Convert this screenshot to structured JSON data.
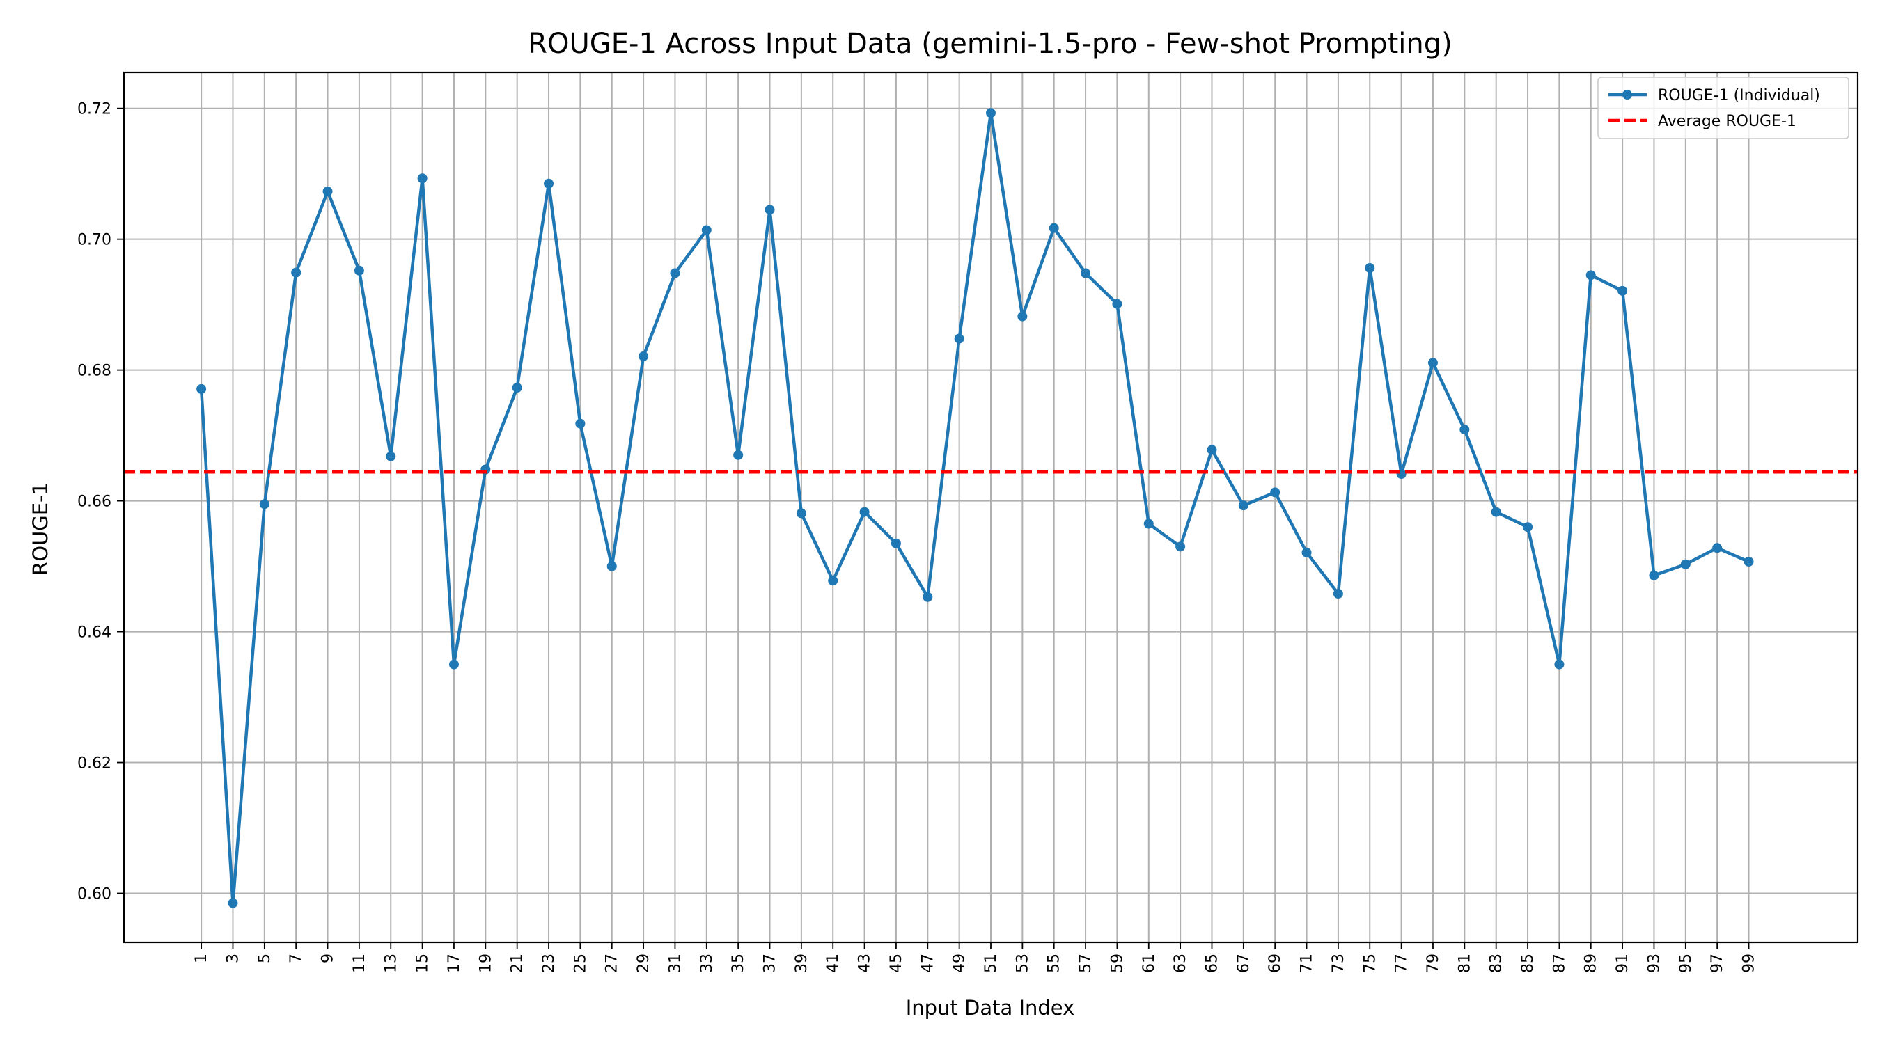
{
  "chart_data": {
    "type": "line",
    "title": "ROUGE-1 Across Input Data (gemini-1.5-pro - Few-shot Prompting)",
    "xlabel": "Input Data Index",
    "ylabel": "ROUGE-1",
    "x": [
      1,
      3,
      5,
      7,
      9,
      11,
      13,
      15,
      17,
      19,
      21,
      23,
      25,
      27,
      29,
      31,
      33,
      35,
      37,
      39,
      41,
      43,
      45,
      47,
      49,
      51,
      53,
      55,
      57,
      59,
      61,
      63,
      65,
      67,
      69,
      71,
      73,
      75,
      77,
      79,
      81,
      83,
      85,
      87,
      89,
      91,
      93,
      95,
      97,
      99
    ],
    "x_tick_labels": [
      "1",
      "3",
      "5",
      "7",
      "9",
      "11",
      "13",
      "15",
      "17",
      "19",
      "21",
      "23",
      "25",
      "27",
      "29",
      "31",
      "33",
      "35",
      "37",
      "39",
      "41",
      "43",
      "45",
      "47",
      "49",
      "51",
      "53",
      "55",
      "57",
      "59",
      "61",
      "63",
      "65",
      "67",
      "69",
      "71",
      "73",
      "75",
      "77",
      "79",
      "81",
      "83",
      "85",
      "87",
      "89",
      "91",
      "93",
      "95",
      "97",
      "99"
    ],
    "y_ticks": [
      0.6,
      0.62,
      0.64,
      0.66,
      0.68,
      0.7,
      0.72
    ],
    "y_tick_labels": [
      "0.60",
      "0.62",
      "0.64",
      "0.66",
      "0.68",
      "0.70",
      "0.72"
    ],
    "ylim": [
      0.5925,
      0.7255
    ],
    "xlim": [
      -3.9,
      105.9
    ],
    "grid": true,
    "legend_position": "top-right",
    "series": [
      {
        "name": "ROUGE-1 (Individual)",
        "color": "#1f77b4",
        "style": "solid-with-markers",
        "values": [
          0.6771,
          0.5985,
          0.6595,
          0.6949,
          0.7073,
          0.6952,
          0.6668,
          0.7093,
          0.635,
          0.6648,
          0.6773,
          0.7085,
          0.6718,
          0.65,
          0.6821,
          0.6948,
          0.7014,
          0.667,
          0.7045,
          0.6581,
          0.6478,
          0.6583,
          0.6535,
          0.6453,
          0.6848,
          0.7193,
          0.6882,
          0.7017,
          0.6948,
          0.6901,
          0.6565,
          0.653,
          0.6678,
          0.6593,
          0.6613,
          0.6521,
          0.6458,
          0.6956,
          0.6641,
          0.6811,
          0.6709,
          0.6583,
          0.656,
          0.635,
          0.6945,
          0.6921,
          0.6486,
          0.6503,
          0.6528,
          0.6507
        ]
      },
      {
        "name": "Average ROUGE-1",
        "color": "#ff0000",
        "style": "dashed",
        "value": 0.6644
      }
    ]
  }
}
